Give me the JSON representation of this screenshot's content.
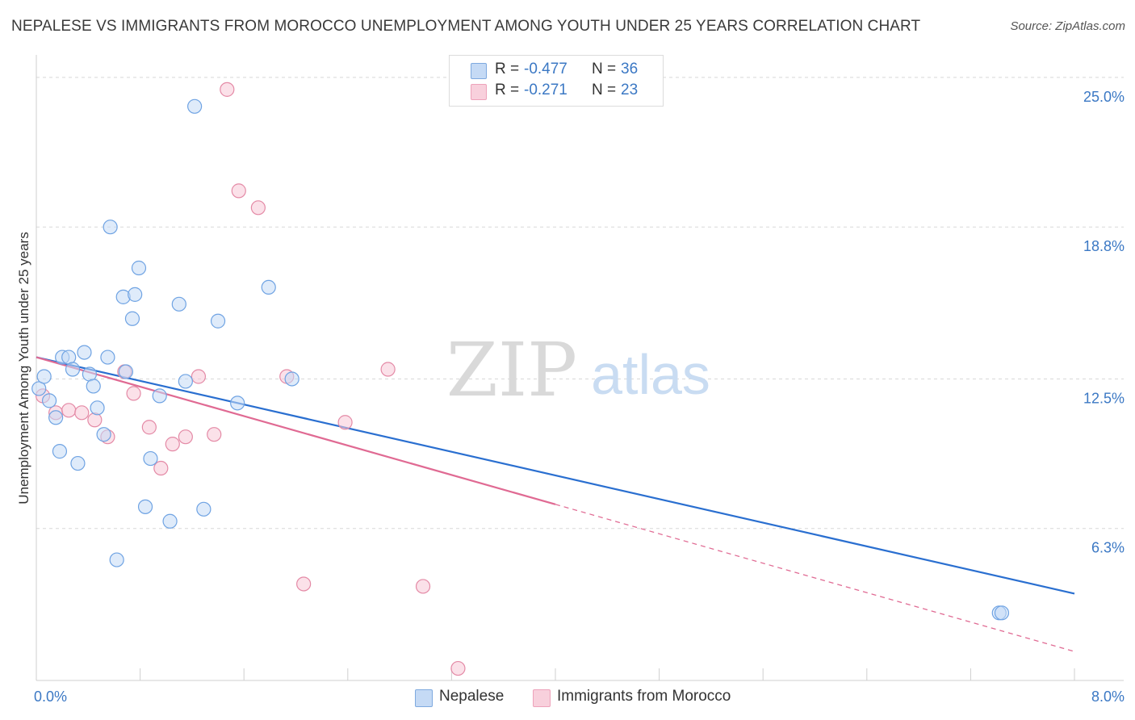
{
  "title": "NEPALESE VS IMMIGRANTS FROM MOROCCO UNEMPLOYMENT AMONG YOUTH UNDER 25 YEARS CORRELATION CHART",
  "source": "Source: ZipAtlas.com",
  "watermark": {
    "zip": "ZIP",
    "atlas": "atlas"
  },
  "legend": [
    {
      "r_label": "R =",
      "r_value": "-0.477",
      "n_label": "N =",
      "n_value": "36",
      "color": "#a9c8f0"
    },
    {
      "r_label": "R =",
      "r_value": "-0.271",
      "n_label": "N =",
      "n_value": "23",
      "color": "#f5b7c9"
    }
  ],
  "chart_data": {
    "type": "scatter",
    "title": "NEPALESE VS IMMIGRANTS FROM MOROCCO UNEMPLOYMENT AMONG YOUTH UNDER 25 YEARS CORRELATION CHART",
    "xlabel": "",
    "ylabel": "Unemployment Among Youth under 25 years",
    "xlim": [
      0.0,
      8.0
    ],
    "ylim": [
      0.0,
      25.6
    ],
    "x_tick_labels": [
      "0.0%",
      "8.0%"
    ],
    "y_ticks": [
      6.3,
      12.5,
      18.8,
      25.0
    ],
    "y_tick_labels": [
      "6.3%",
      "12.5%",
      "18.8%",
      "25.0%"
    ],
    "grid": true,
    "legend_position": "top-center",
    "series": [
      {
        "name": "Nepalese",
        "color": "#6fa3e3",
        "fill": "#c5daf5",
        "points": [
          [
            0.02,
            12.1
          ],
          [
            0.06,
            12.6
          ],
          [
            0.1,
            11.6
          ],
          [
            0.15,
            10.9
          ],
          [
            0.18,
            9.5
          ],
          [
            0.2,
            13.4
          ],
          [
            0.25,
            13.4
          ],
          [
            0.28,
            12.9
          ],
          [
            0.32,
            9.0
          ],
          [
            0.37,
            13.6
          ],
          [
            0.41,
            12.7
          ],
          [
            0.44,
            12.2
          ],
          [
            0.47,
            11.3
          ],
          [
            0.52,
            10.2
          ],
          [
            0.55,
            13.4
          ],
          [
            0.57,
            18.8
          ],
          [
            0.62,
            5.0
          ],
          [
            0.67,
            15.9
          ],
          [
            0.69,
            12.8
          ],
          [
            0.74,
            15.0
          ],
          [
            0.76,
            16.0
          ],
          [
            0.79,
            17.1
          ],
          [
            0.84,
            7.2
          ],
          [
            0.88,
            9.2
          ],
          [
            0.95,
            11.8
          ],
          [
            1.03,
            6.6
          ],
          [
            1.1,
            15.6
          ],
          [
            1.15,
            12.4
          ],
          [
            1.22,
            23.8
          ],
          [
            1.29,
            7.1
          ],
          [
            1.4,
            14.9
          ],
          [
            1.55,
            11.5
          ],
          [
            1.79,
            16.3
          ],
          [
            1.97,
            12.5
          ],
          [
            7.42,
            2.8
          ],
          [
            7.44,
            2.8
          ]
        ],
        "trend": {
          "x": [
            0.0,
            8.0
          ],
          "y": [
            13.4,
            3.6
          ],
          "color": "#2a6fd0"
        }
      },
      {
        "name": "Immigrants from Morocco",
        "color": "#e48aa6",
        "fill": "#f8c9d7",
        "points": [
          [
            0.05,
            11.8
          ],
          [
            0.15,
            11.1
          ],
          [
            0.25,
            11.2
          ],
          [
            0.35,
            11.1
          ],
          [
            0.45,
            10.8
          ],
          [
            0.55,
            10.1
          ],
          [
            0.68,
            12.8
          ],
          [
            0.75,
            11.9
          ],
          [
            0.87,
            10.5
          ],
          [
            0.96,
            8.8
          ],
          [
            1.05,
            9.8
          ],
          [
            1.15,
            10.1
          ],
          [
            1.25,
            12.6
          ],
          [
            1.37,
            10.2
          ],
          [
            1.47,
            24.5
          ],
          [
            1.56,
            20.3
          ],
          [
            1.71,
            19.6
          ],
          [
            1.93,
            12.6
          ],
          [
            2.06,
            4.0
          ],
          [
            2.38,
            10.7
          ],
          [
            2.71,
            12.9
          ],
          [
            2.98,
            3.9
          ],
          [
            3.25,
            0.5
          ]
        ],
        "trend": {
          "x": [
            0.0,
            4.0
          ],
          "y": [
            13.4,
            7.3
          ],
          "dashed_to": [
            8.0,
            1.2
          ],
          "color": "#e06a93"
        }
      }
    ]
  }
}
